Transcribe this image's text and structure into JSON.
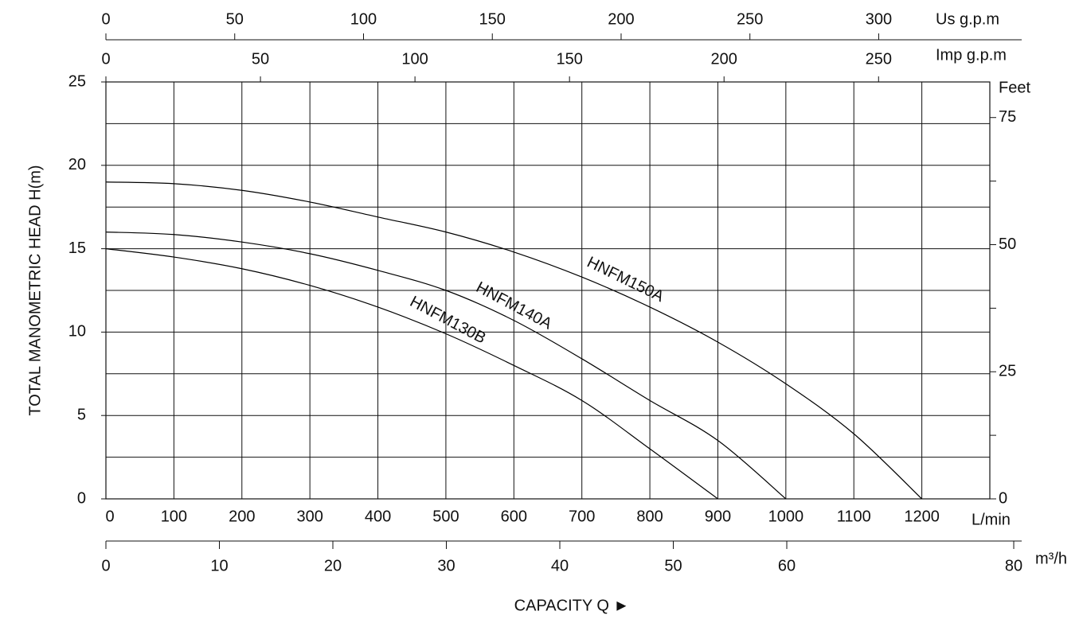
{
  "chart_data": {
    "type": "line",
    "y_title": "TOTAL MANOMETRIC HEAD H(m)",
    "x_title": "CAPACITY Q ►",
    "x_unit": "L/min",
    "line_color": "#000000",
    "x": [
      0,
      100,
      200,
      300,
      400,
      500,
      600,
      700,
      800,
      900,
      1000,
      1100,
      1200
    ],
    "xlim": [
      0,
      1300
    ],
    "xticks": [
      0,
      100,
      200,
      300,
      400,
      500,
      600,
      700,
      800,
      900,
      1000,
      1100,
      1200
    ],
    "xgrid": [
      0,
      100,
      200,
      300,
      400,
      500,
      600,
      700,
      800,
      900,
      1000,
      1100,
      1200,
      1300
    ],
    "ylim": [
      0,
      25
    ],
    "yticks": [
      0,
      5,
      10,
      15,
      20,
      25
    ],
    "ygrid": [
      0,
      2.5,
      5,
      7.5,
      10,
      12.5,
      15,
      17.5,
      20,
      22.5,
      25
    ],
    "series": [
      {
        "name": "HNFM150A",
        "values": [
          19,
          18.9,
          18.5,
          17.8,
          16.9,
          16,
          14.8,
          13.3,
          11.5,
          9.4,
          6.9,
          3.9,
          0
        ]
      },
      {
        "name": "HNFM140A",
        "values": [
          16,
          15.85,
          15.4,
          14.7,
          13.7,
          12.5,
          10.7,
          8.4,
          5.9,
          3.5,
          0,
          null,
          null
        ]
      },
      {
        "name": "HNFM130B",
        "values": [
          15,
          14.5,
          13.8,
          12.8,
          11.5,
          9.9,
          8.0,
          5.9,
          3.0,
          0,
          null,
          null,
          null
        ]
      }
    ],
    "us_gpm_axis": {
      "label": "Us g.p.m",
      "lim": [
        0,
        355.5
      ],
      "ticks": [
        0,
        50,
        100,
        150,
        200,
        250,
        300
      ]
    },
    "imp_gpm_axis": {
      "label": "Imp g.p.m",
      "lim": [
        0,
        286
      ],
      "ticks": [
        0,
        50,
        100,
        150,
        200,
        250
      ]
    },
    "m3h_axis": {
      "label": "m³/h",
      "lim": [
        0,
        80.7
      ],
      "ticks": [
        0,
        10,
        20,
        30,
        40,
        50,
        60,
        80
      ]
    },
    "feet_axis": {
      "label": "Feet",
      "lim": [
        0,
        82
      ],
      "ticks": [
        0,
        25,
        50,
        75
      ],
      "minor_ticks": [
        12.5,
        37.5,
        62.5
      ]
    }
  }
}
